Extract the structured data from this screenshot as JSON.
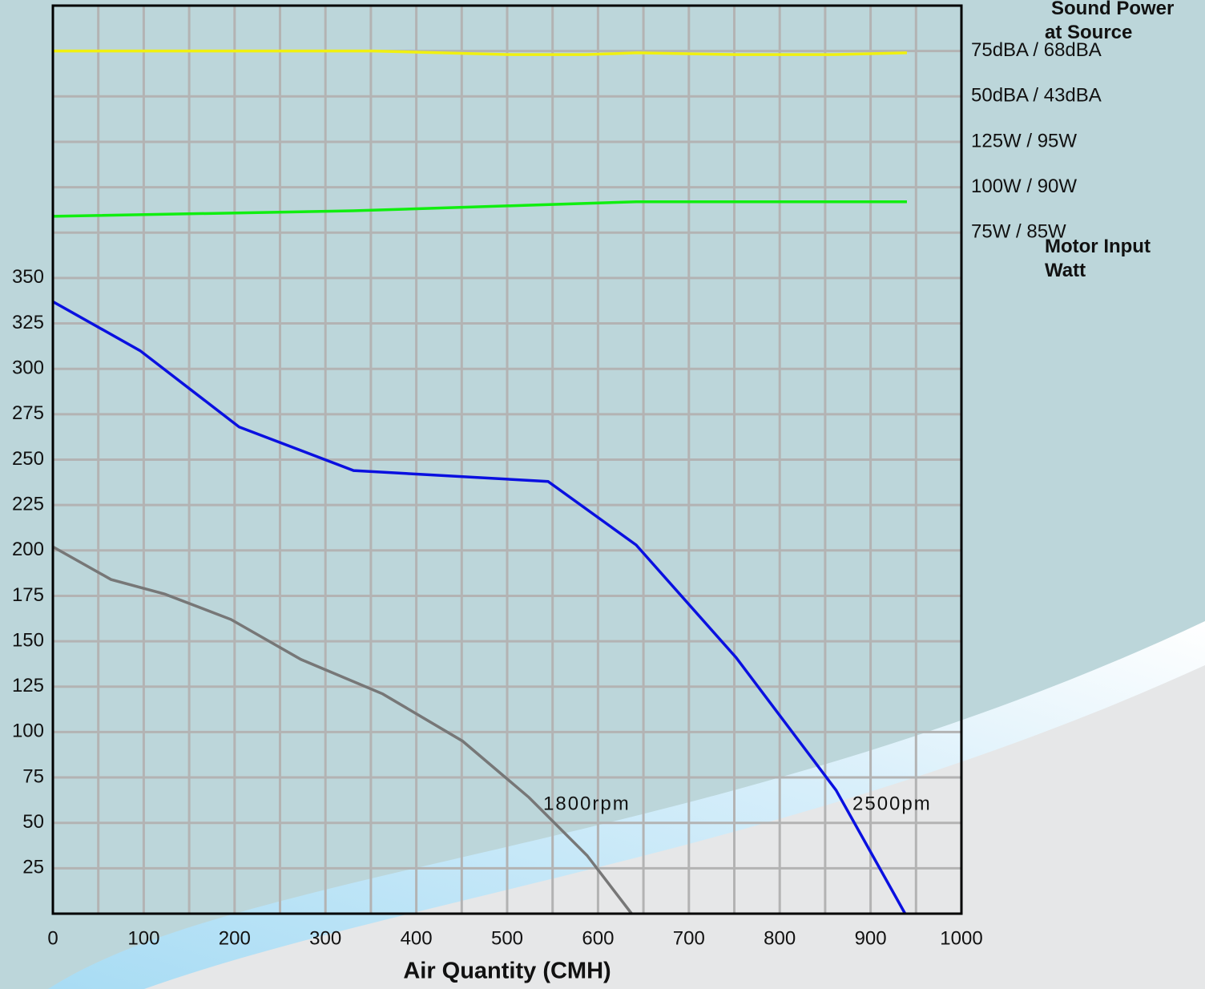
{
  "chart_data": {
    "type": "line",
    "xlabel": "Air Quantity (CMH)",
    "y2_title_top": "Sound Power at Source",
    "y2_title_bottom": "Motor Input Watt",
    "xlim": [
      0,
      1000
    ],
    "ylim": [
      0,
      500
    ],
    "y2lim": [
      0,
      500
    ],
    "xticks": [
      0,
      100,
      200,
      300,
      400,
      500,
      600,
      700,
      800,
      900,
      1000
    ],
    "x_minor_grid": [
      50,
      150,
      250,
      350,
      450,
      550,
      650,
      750,
      850,
      950
    ],
    "yticks": [
      25,
      50,
      75,
      100,
      125,
      150,
      175,
      200,
      225,
      250,
      275,
      300,
      325,
      350
    ],
    "y2ticks": [
      {
        "value": 475,
        "label": "75dBA / 68dBA"
      },
      {
        "value": 450,
        "label": "50dBA / 43dBA"
      },
      {
        "value": 425,
        "label": "125W / 95W"
      },
      {
        "value": 400,
        "label": "100W / 90W"
      },
      {
        "value": 375,
        "label": "75W / 85W"
      }
    ],
    "grid": true,
    "series": [
      {
        "name": "2500pm",
        "color": "#0a10e0",
        "x": [
          0,
          96,
          205,
          331,
          545,
          642,
          752,
          862,
          938
        ],
        "values": [
          337,
          310,
          268,
          244,
          238,
          203,
          141,
          68,
          0
        ]
      },
      {
        "name": "1800rpm",
        "color": "#777777",
        "x": [
          0,
          64,
          123,
          196,
          273,
          363,
          451,
          524,
          588,
          637
        ],
        "values": [
          202,
          184,
          176,
          162,
          140,
          121,
          95,
          64,
          32,
          0
        ]
      },
      {
        "color": "#10ee10",
        "x": [
          0,
          330,
          642,
          940
        ],
        "values": [
          384,
          387,
          392,
          392
        ]
      },
      {
        "color": "#f0f010",
        "x": [
          0,
          353,
          506,
          586,
          643,
          753,
          859,
          940
        ],
        "values": [
          475,
          475,
          473,
          473,
          474,
          473,
          473,
          474
        ]
      }
    ]
  }
}
